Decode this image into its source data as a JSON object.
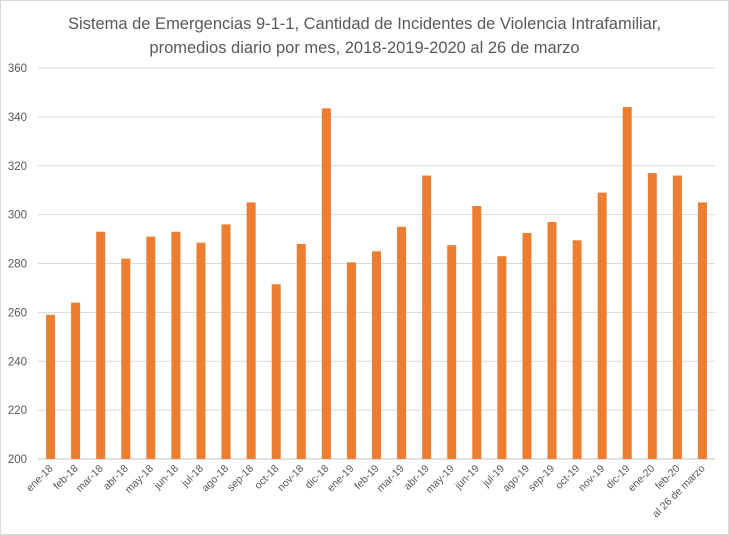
{
  "chart_data": {
    "type": "bar",
    "title": "Sistema de Emergencias 9-1-1, Cantidad de Incidentes de Violencia Intrafamiliar,",
    "subtitle": "promedios diario por mes, 2018-2019-2020 al 26 de marzo",
    "xlabel": "",
    "ylabel": "",
    "ylim": [
      200,
      360
    ],
    "yticks": [
      200,
      220,
      240,
      260,
      280,
      300,
      320,
      340,
      360
    ],
    "grid": true,
    "legend": "none",
    "bar_color": "#ED7D31",
    "categories": [
      "ene-18",
      "feb-18",
      "mar-18",
      "abr-18",
      "may-18",
      "jun-18",
      "jul-18",
      "ago-18",
      "sep-18",
      "oct-18",
      "nov-18",
      "dic-18",
      "ene-19",
      "feb-19",
      "mar-19",
      "abr-19",
      "may-19",
      "jun-19",
      "jul-19",
      "ago-19",
      "sep-19",
      "oct-19",
      "nov-19",
      "dic-19",
      "ene-20",
      "feb-20",
      "al 26 de marzo"
    ],
    "values": [
      259,
      264,
      293,
      282,
      291,
      293,
      288.5,
      296,
      305,
      271.5,
      288,
      343.5,
      280.5,
      285,
      295,
      316,
      287.5,
      303.5,
      283,
      292.5,
      297,
      289.5,
      309,
      344,
      317,
      316,
      305
    ]
  }
}
